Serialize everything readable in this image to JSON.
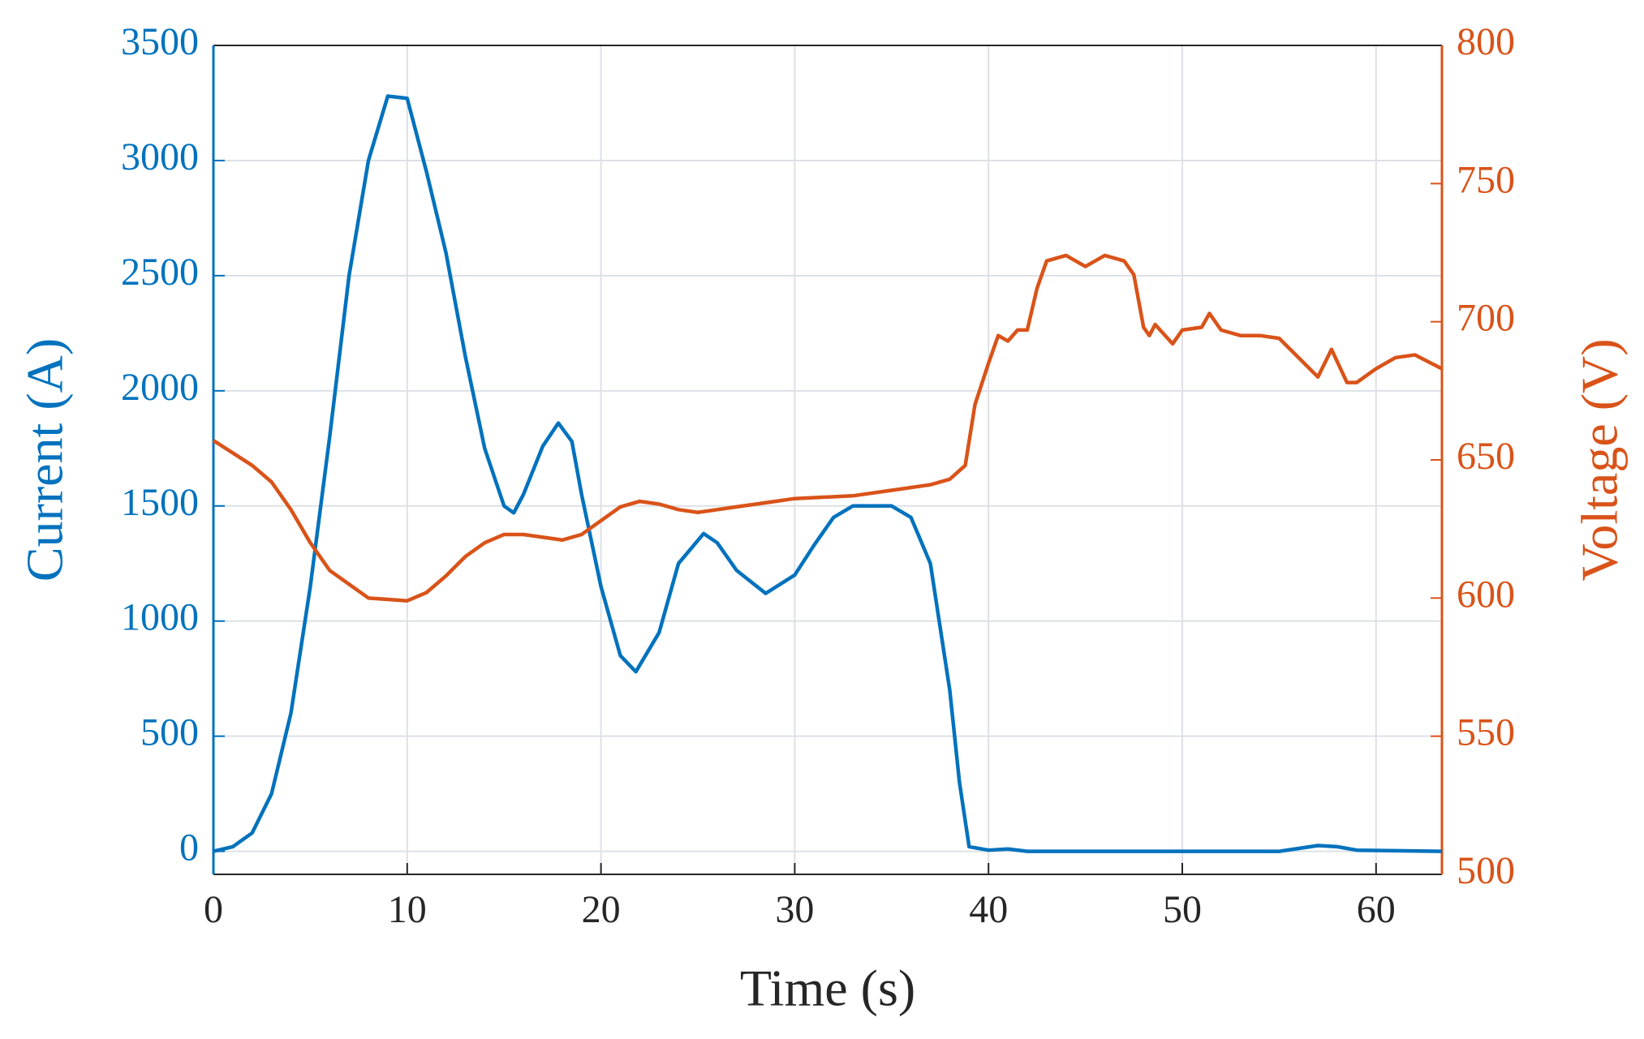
{
  "chart_data": {
    "type": "line",
    "xlabel": "Time (s)",
    "ylabel": "Current (A)",
    "y2label": "Voltage (V)",
    "xlim": [
      0,
      63.4
    ],
    "xticks": [
      0,
      10,
      20,
      30,
      40,
      50,
      60
    ],
    "ylim": [
      -100,
      3500
    ],
    "yticks": [
      0,
      500,
      1000,
      1500,
      2000,
      2500,
      3000,
      3500
    ],
    "y2lim": [
      500,
      800
    ],
    "y2ticks": [
      500,
      550,
      600,
      650,
      700,
      750,
      800
    ],
    "grid": true,
    "series": [
      {
        "name": "Current",
        "color": "#0072BD",
        "axis": "y",
        "x": [
          0,
          1,
          2,
          3,
          4,
          5,
          6,
          7,
          8,
          9,
          10,
          11,
          12,
          13,
          14,
          15,
          15.5,
          16,
          17,
          17.8,
          18.5,
          19,
          20,
          21,
          21.8,
          23,
          24,
          25.3,
          26,
          27,
          28.5,
          30,
          31,
          32,
          33,
          35,
          36,
          37,
          38,
          38.5,
          39,
          40,
          41,
          42,
          50,
          55,
          57,
          58,
          59,
          63.4
        ],
        "values": [
          0,
          20,
          80,
          250,
          600,
          1150,
          1800,
          2500,
          3000,
          3280,
          3270,
          2950,
          2600,
          2150,
          1750,
          1500,
          1470,
          1550,
          1760,
          1860,
          1780,
          1550,
          1150,
          850,
          780,
          950,
          1250,
          1380,
          1340,
          1220,
          1120,
          1200,
          1330,
          1450,
          1500,
          1500,
          1450,
          1250,
          700,
          300,
          20,
          5,
          10,
          0,
          0,
          0,
          25,
          20,
          5,
          0
        ]
      },
      {
        "name": "Voltage",
        "color": "#D95319",
        "axis": "y2",
        "x": [
          0,
          2,
          3,
          4,
          5,
          6,
          8,
          9,
          10,
          11,
          12,
          13,
          14,
          15,
          16,
          17,
          18,
          19,
          20,
          21,
          22,
          23,
          24,
          25,
          26,
          27,
          28,
          29,
          30,
          33,
          35,
          37,
          38,
          38.8,
          39.3,
          40,
          40.5,
          41,
          41.5,
          42,
          42.5,
          43,
          44,
          45,
          46,
          47,
          47.5,
          48,
          48.3,
          48.6,
          49.5,
          50,
          51,
          51.4,
          52,
          53,
          54,
          55,
          57,
          57.7,
          58.5,
          59,
          60,
          61,
          62,
          63.4
        ],
        "values": [
          657,
          648,
          642,
          632,
          620,
          610,
          600,
          599.5,
          599,
          602,
          608,
          615,
          620,
          623,
          623,
          622,
          621,
          623,
          628,
          633,
          635,
          634,
          632,
          631,
          632,
          633,
          634,
          635,
          636,
          637,
          639,
          641,
          643,
          648,
          670,
          685,
          695,
          693,
          697,
          697,
          712,
          722,
          724,
          720,
          724,
          722,
          717,
          698,
          695,
          699,
          692,
          697,
          698,
          703,
          697,
          695,
          695,
          694,
          680,
          690,
          678,
          678,
          683,
          687,
          688,
          683
        ]
      }
    ]
  }
}
